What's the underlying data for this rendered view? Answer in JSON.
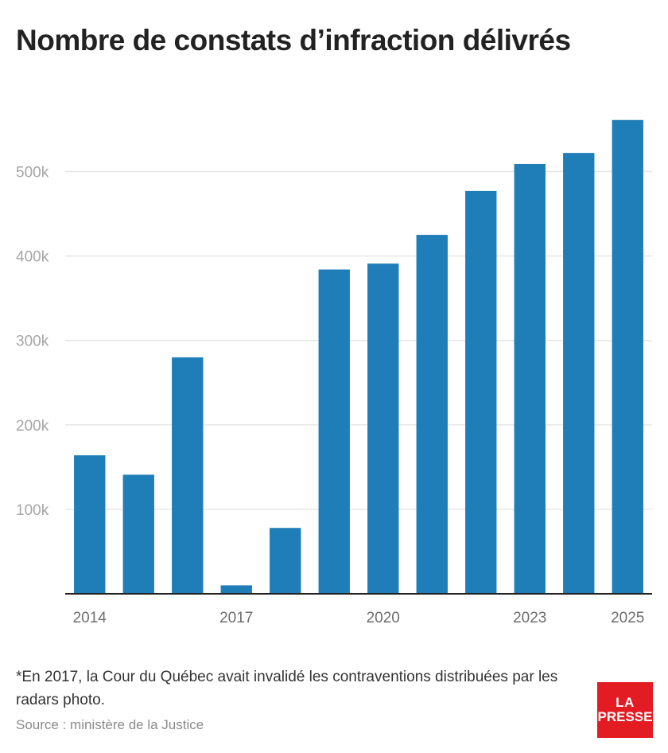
{
  "title": "Nombre de constats d’infraction délivrés",
  "note": "*En 2017, la Cour du Québec avait invalidé les contraventions distribuées par les radars photo.",
  "source": "Source : ministère de la Justice",
  "logo": {
    "line1": "LA",
    "line2": "PRESSE"
  },
  "colors": {
    "bar": "#1f7eb8",
    "grid": "#e6e6e6",
    "axis": "#222222",
    "logo_bg": "#e31b23"
  },
  "chart_data": {
    "type": "bar",
    "title": "Nombre de constats d’infraction délivrés",
    "xlabel": "",
    "ylabel": "",
    "categories": [
      "2014",
      "2015",
      "2016",
      "2017",
      "2018",
      "2019",
      "2020",
      "2021",
      "2022",
      "2023",
      "2024",
      "2025"
    ],
    "values": [
      164000,
      141000,
      280000,
      10000,
      78000,
      384000,
      391000,
      425000,
      477000,
      509000,
      522000,
      561000
    ],
    "ylim": [
      0,
      590000
    ],
    "yticks": [
      100000,
      200000,
      300000,
      400000,
      500000
    ],
    "ytick_labels": [
      "100k",
      "200k",
      "300k",
      "400k",
      "500k"
    ],
    "xtick_labels": [
      "2014",
      "2017",
      "2020",
      "2023",
      "2025"
    ],
    "grid": true
  }
}
